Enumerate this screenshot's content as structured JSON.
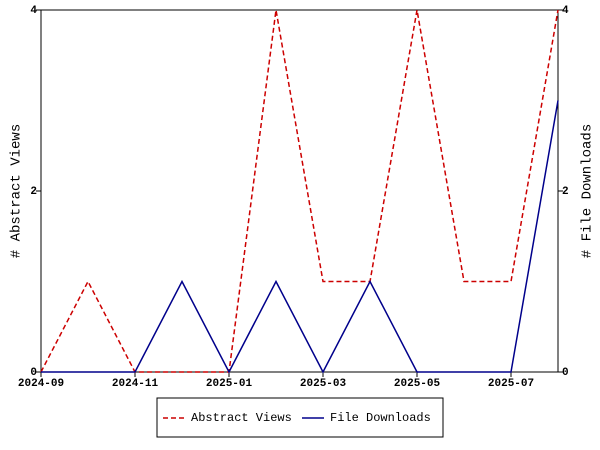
{
  "chart_data": {
    "type": "line",
    "categories": [
      "2024-09",
      null,
      "2024-11",
      null,
      "2025-01",
      null,
      "2025-03",
      null,
      "2025-05",
      null,
      "2025-07",
      null
    ],
    "y_label": "# Abstract Views",
    "y2_label": "# File Downloads",
    "series": [
      {
        "name": "Abstract Views",
        "color": "#cc0000",
        "dash": true,
        "values": [
          0,
          1,
          0,
          0,
          0,
          4,
          1,
          1,
          4,
          1,
          1,
          4
        ]
      },
      {
        "name": "File Downloads",
        "color": "#00008b",
        "axis": "y2",
        "values": [
          0,
          0,
          0,
          1,
          0,
          1,
          0,
          1,
          0,
          0,
          0,
          3
        ]
      }
    ],
    "ylim": [
      0,
      4
    ],
    "yticks": [
      0,
      2,
      4
    ],
    "y2lim": [
      0,
      4
    ],
    "y2ticks": [
      0,
      2,
      4
    ],
    "legend": "bottom"
  }
}
